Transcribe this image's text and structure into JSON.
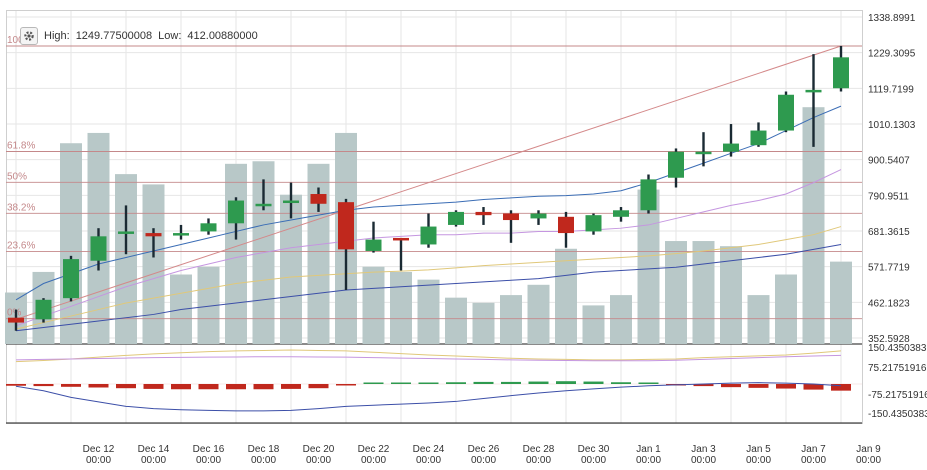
{
  "header": {
    "high_label": "High:",
    "high_value": "1249.77500008",
    "low_label": "Low:",
    "low_value": "412.00880000",
    "settings_icon": "gear-icon"
  },
  "colors": {
    "up": "#2e9a4f",
    "down": "#c0281d",
    "volume": "#b8c8c8",
    "fib_line": "#c4888a",
    "fib_text": "#c4888a",
    "trend_line": "#d4898a",
    "ma_fast": "#3b6db5",
    "ma_slow": "#3c4fa8",
    "ma_violet": "#c596e0",
    "ma_yellow": "#e0c87a",
    "grid": "#e6e6e6"
  },
  "chart_data": {
    "type": "candlestick",
    "price_axis": {
      "ticks": [
        "1338.8991",
        "1229.3095",
        "1119.7199",
        "1010.1303",
        "900.5407",
        "790.9511",
        "681.3615",
        "571.7719",
        "462.1823",
        "352.5928"
      ],
      "range": [
        352.5928,
        1338.8991
      ]
    },
    "oscillator_axis": {
      "ticks": [
        "150.4350383",
        "75.21751916",
        "-75.21751916",
        "-150.4350383"
      ],
      "range": [
        -170,
        170
      ]
    },
    "fib_levels": [
      {
        "label": "100",
        "value": 1249.775
      },
      {
        "label": "61.8%",
        "value": 925.6
      },
      {
        "label": "50%",
        "value": 830.9
      },
      {
        "label": "38.2%",
        "value": 735.8
      },
      {
        "label": "23.6%",
        "value": 618.2
      },
      {
        "label": "0%",
        "value": 412.0
      }
    ],
    "x_labels": [
      {
        "date": "Dec 12",
        "time": "00:00",
        "index": 3
      },
      {
        "date": "Dec 14",
        "time": "00:00",
        "index": 5
      },
      {
        "date": "Dec 16",
        "time": "00:00",
        "index": 7
      },
      {
        "date": "Dec 18",
        "time": "00:00",
        "index": 9
      },
      {
        "date": "Dec 20",
        "time": "00:00",
        "index": 11
      },
      {
        "date": "Dec 22",
        "time": "00:00",
        "index": 13
      },
      {
        "date": "Dec 24",
        "time": "00:00",
        "index": 15
      },
      {
        "date": "Dec 26",
        "time": "00:00",
        "index": 17
      },
      {
        "date": "Dec 28",
        "time": "00:00",
        "index": 19
      },
      {
        "date": "Dec 30",
        "time": "00:00",
        "index": 21
      },
      {
        "date": "Jan 1",
        "time": "00:00",
        "index": 23
      },
      {
        "date": "Jan 3",
        "time": "00:00",
        "index": 25
      },
      {
        "date": "Jan 5",
        "time": "00:00",
        "index": 27
      },
      {
        "date": "Jan 7",
        "time": "00:00",
        "index": 29
      },
      {
        "date": "Jan 9",
        "time": "00:00",
        "index": 31
      }
    ],
    "candles": [
      {
        "o": 415,
        "h": 440,
        "l": 375,
        "c": 400
      },
      {
        "o": 410,
        "h": 475,
        "l": 400,
        "c": 470
      },
      {
        "o": 475,
        "h": 605,
        "l": 465,
        "c": 595
      },
      {
        "o": 590,
        "h": 690,
        "l": 560,
        "c": 665
      },
      {
        "o": 680,
        "h": 760,
        "l": 610,
        "c": 680
      },
      {
        "o": 675,
        "h": 690,
        "l": 600,
        "c": 665
      },
      {
        "o": 670,
        "h": 700,
        "l": 655,
        "c": 675
      },
      {
        "o": 680,
        "h": 720,
        "l": 670,
        "c": 705
      },
      {
        "o": 705,
        "h": 785,
        "l": 655,
        "c": 775
      },
      {
        "o": 760,
        "h": 840,
        "l": 745,
        "c": 765
      },
      {
        "o": 775,
        "h": 830,
        "l": 720,
        "c": 775
      },
      {
        "o": 795,
        "h": 815,
        "l": 740,
        "c": 765
      },
      {
        "o": 770,
        "h": 780,
        "l": 500,
        "c": 625
      },
      {
        "o": 620,
        "h": 710,
        "l": 615,
        "c": 655
      },
      {
        "o": 660,
        "h": 660,
        "l": 560,
        "c": 655
      },
      {
        "o": 640,
        "h": 735,
        "l": 630,
        "c": 695
      },
      {
        "o": 700,
        "h": 745,
        "l": 695,
        "c": 740
      },
      {
        "o": 740,
        "h": 755,
        "l": 700,
        "c": 730
      },
      {
        "o": 735,
        "h": 745,
        "l": 645,
        "c": 715
      },
      {
        "o": 720,
        "h": 745,
        "l": 700,
        "c": 735
      },
      {
        "o": 725,
        "h": 740,
        "l": 630,
        "c": 675
      },
      {
        "o": 680,
        "h": 735,
        "l": 670,
        "c": 730
      },
      {
        "o": 725,
        "h": 755,
        "l": 710,
        "c": 745
      },
      {
        "o": 745,
        "h": 855,
        "l": 735,
        "c": 840
      },
      {
        "o": 845,
        "h": 935,
        "l": 815,
        "c": 925
      },
      {
        "o": 925,
        "h": 985,
        "l": 880,
        "c": 925
      },
      {
        "o": 925,
        "h": 1010,
        "l": 910,
        "c": 950
      },
      {
        "o": 945,
        "h": 1015,
        "l": 940,
        "c": 990
      },
      {
        "o": 990,
        "h": 1110,
        "l": 985,
        "c": 1100
      },
      {
        "o": 1110,
        "h": 1225,
        "l": 940,
        "c": 1115
      },
      {
        "o": 1120,
        "h": 1250,
        "l": 1110,
        "c": 1215
      }
    ],
    "volume": [
      0.2,
      0.28,
      0.78,
      0.82,
      0.66,
      0.62,
      0.27,
      0.3,
      0.7,
      0.71,
      0.58,
      0.7,
      0.82,
      0.3,
      0.28,
      0.25,
      0.18,
      0.16,
      0.19,
      0.23,
      0.37,
      0.15,
      0.19,
      0.6,
      0.4,
      0.4,
      0.38,
      0.19,
      0.27,
      0.92,
      0.32
    ],
    "ma_fast": [
      470,
      520,
      550,
      580,
      600,
      620,
      640,
      660,
      680,
      700,
      715,
      730,
      745,
      755,
      760,
      765,
      770,
      778,
      783,
      788,
      790,
      795,
      805,
      830,
      860,
      890,
      920,
      950,
      990,
      1030,
      1065
    ],
    "ma_slow": [
      375,
      385,
      395,
      405,
      415,
      425,
      440,
      450,
      460,
      470,
      480,
      490,
      500,
      505,
      510,
      515,
      520,
      525,
      530,
      535,
      545,
      555,
      560,
      565,
      570,
      580,
      590,
      600,
      610,
      625,
      640
    ],
    "ma_violet": [
      390,
      420,
      450,
      480,
      510,
      535,
      560,
      580,
      600,
      615,
      630,
      640,
      650,
      660,
      665,
      670,
      670,
      675,
      675,
      680,
      680,
      685,
      690,
      700,
      720,
      740,
      760,
      775,
      795,
      830,
      870
    ],
    "ma_yellow": [
      380,
      400,
      420,
      440,
      460,
      475,
      490,
      505,
      520,
      530,
      540,
      545,
      550,
      555,
      558,
      562,
      568,
      575,
      580,
      585,
      590,
      595,
      600,
      605,
      612,
      620,
      630,
      640,
      655,
      670,
      695
    ],
    "osc_bars": [
      -5,
      -6,
      -8,
      -10,
      -12,
      -14,
      -15,
      -15,
      -15,
      -15,
      -14,
      -12,
      -4,
      0,
      2,
      4,
      5,
      6,
      6,
      7,
      8,
      7,
      5,
      1,
      -4,
      -6,
      -9,
      -11,
      -13,
      -16,
      -19
    ],
    "osc_line_a": [
      100,
      105,
      112,
      120,
      128,
      135,
      140,
      145,
      148,
      150,
      152,
      150,
      148,
      142,
      136,
      130,
      125,
      120,
      115,
      112,
      110,
      108,
      108,
      110,
      112,
      118,
      122,
      126,
      130,
      138,
      148
    ],
    "osc_line_b": [
      108,
      110,
      112,
      114,
      116,
      118,
      119,
      120,
      121,
      122,
      122,
      121,
      120,
      118,
      116,
      114,
      112,
      110,
      108,
      106,
      105,
      104,
      104,
      104,
      106,
      110,
      114,
      118,
      122,
      125,
      128
    ],
    "osc_line_c": [
      -10,
      -30,
      -60,
      -80,
      -100,
      -110,
      -115,
      -118,
      -120,
      -120,
      -118,
      -110,
      -100,
      -95,
      -90,
      -85,
      -78,
      -65,
      -52,
      -40,
      -30,
      -22,
      -14,
      -8,
      -4,
      0,
      4,
      6,
      4,
      0,
      -8
    ]
  }
}
